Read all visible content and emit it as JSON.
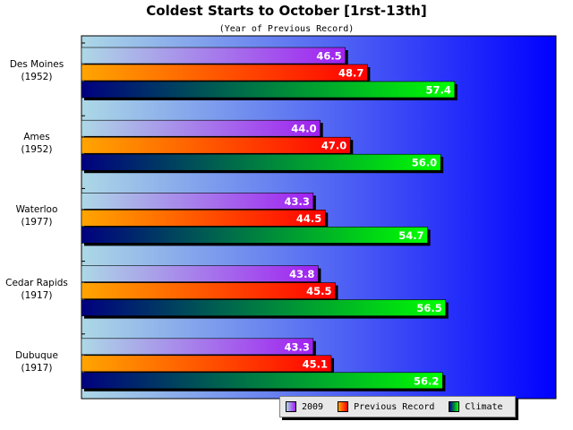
{
  "chart_data": {
    "type": "bar",
    "orientation": "horizontal",
    "title": "Coldest Starts to October [1rst-13th]",
    "subtitle": "(Year of Previous Record)",
    "categories": [
      [
        "Des Moines",
        "(1952)"
      ],
      [
        "Ames",
        "(1952)"
      ],
      [
        "Waterloo",
        "(1977)"
      ],
      [
        "Cedar Rapids",
        "(1917)"
      ],
      [
        "Dubuque",
        "(1917)"
      ]
    ],
    "series": [
      {
        "name": "2009",
        "values": [
          46.5,
          44.0,
          43.3,
          43.8,
          43.3
        ],
        "labels": [
          "46.5",
          "44.0",
          "43.3",
          "43.8",
          "43.3"
        ],
        "color": "#a040e0"
      },
      {
        "name": "Previous Record",
        "values": [
          48.7,
          47.0,
          44.5,
          45.5,
          45.1
        ],
        "labels": [
          "48.7",
          "47.0",
          "44.5",
          "45.5",
          "45.1"
        ],
        "color": "#ff3000"
      },
      {
        "name": "Climate",
        "values": [
          57.4,
          56.0,
          54.7,
          56.5,
          56.2
        ],
        "labels": [
          "57.4",
          "56.0",
          "54.7",
          "56.5",
          "56.2"
        ],
        "color": "#00dd00"
      }
    ],
    "xlim": [
      20.2,
      67.5
    ],
    "legend_position": "bottom-right",
    "grid": false
  }
}
